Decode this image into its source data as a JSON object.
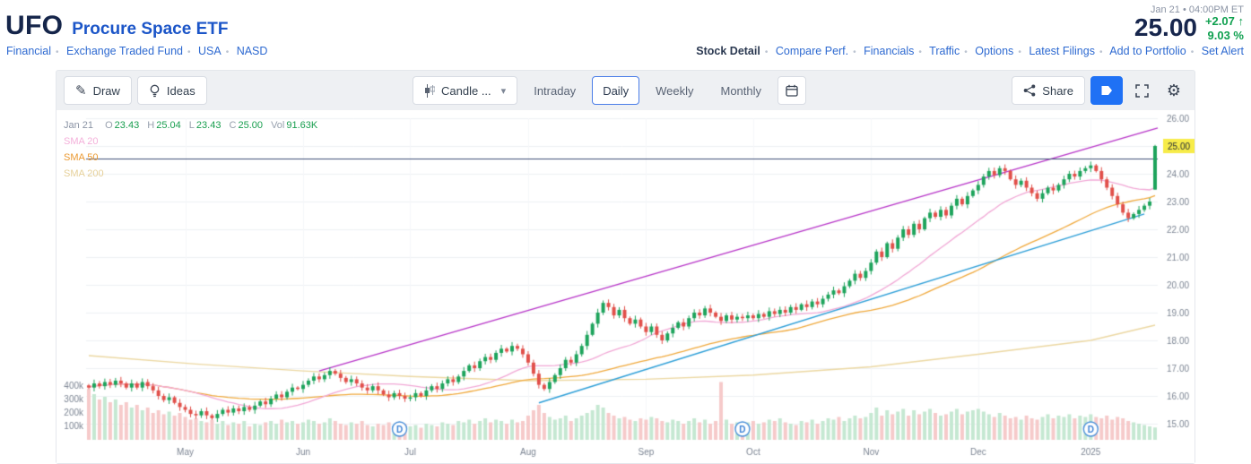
{
  "header": {
    "symbol": "UFO",
    "name": "Procure Space ETF",
    "breadcrumb": [
      "Financial",
      "Exchange Traded Fund",
      "USA",
      "NASD"
    ],
    "timestamp": "Jan 21 • 04:00PM ET",
    "price": "25.00",
    "change": "+2.07",
    "change_arrow": "↑",
    "change_pct": "9.03 %",
    "nav": [
      {
        "label": "Stock Detail"
      },
      {
        "label": "Compare Perf."
      },
      {
        "label": "Financials"
      },
      {
        "label": "Traffic"
      },
      {
        "label": "Options"
      },
      {
        "label": "Latest Filings"
      },
      {
        "label": "Add to Portfolio"
      },
      {
        "label": "Set Alert"
      }
    ]
  },
  "toolbar": {
    "draw_label": "Draw",
    "ideas_label": "Ideas",
    "chart_type_dropdown": "Candle ...",
    "tabs": [
      {
        "label": "Intraday"
      },
      {
        "label": "Daily"
      },
      {
        "label": "Weekly"
      },
      {
        "label": "Monthly"
      }
    ],
    "share_label": "Share"
  },
  "legend": {
    "date": "Jan 21",
    "o_label": "O",
    "o": "23.43",
    "h_label": "H",
    "h": "25.04",
    "l_label": "L",
    "l": "23.43",
    "c_label": "C",
    "c": "25.00",
    "vol_label": "Vol",
    "vol": "91.63K",
    "sma20_label": "SMA 20",
    "sma50_label": "SMA 50",
    "sma200_label": "SMA 200"
  },
  "chart_data": {
    "type": "candlestick",
    "title": "UFO Procure Space ETF — Daily",
    "x_axis_labels": [
      "May",
      "Jun",
      "Jul",
      "Aug",
      "Sep",
      "Oct",
      "Nov",
      "Dec",
      "2025"
    ],
    "month_start_index": [
      18,
      40,
      60,
      82,
      104,
      124,
      146,
      166,
      187
    ],
    "y_max": 26,
    "y_ticks": [
      26,
      25,
      24,
      23,
      22,
      21,
      20,
      19,
      18,
      17,
      16,
      15
    ],
    "volume_ticks": [
      {
        "label": "400k",
        "value": 400
      },
      {
        "label": "300k",
        "value": 300
      },
      {
        "label": "200k",
        "value": 200
      },
      {
        "label": "100k",
        "value": 100
      }
    ],
    "closes": [
      16.3,
      16.45,
      16.35,
      16.5,
      16.4,
      16.55,
      16.45,
      16.3,
      16.45,
      16.3,
      16.5,
      16.35,
      16.2,
      16.0,
      15.85,
      15.95,
      15.75,
      15.6,
      15.5,
      15.35,
      15.3,
      15.45,
      15.3,
      15.2,
      15.35,
      15.5,
      15.4,
      15.55,
      15.45,
      15.6,
      15.5,
      15.65,
      15.8,
      15.7,
      15.9,
      16.05,
      15.95,
      16.15,
      16.3,
      16.25,
      16.4,
      16.55,
      16.7,
      16.6,
      16.75,
      16.9,
      16.8,
      16.65,
      16.5,
      16.6,
      16.45,
      16.3,
      16.2,
      16.35,
      16.2,
      16.05,
      15.95,
      16.1,
      16.0,
      15.9,
      15.95,
      16.1,
      16.0,
      16.2,
      16.35,
      16.25,
      16.45,
      16.6,
      16.5,
      16.7,
      16.9,
      17.1,
      17.0,
      17.25,
      17.4,
      17.3,
      17.55,
      17.7,
      17.6,
      17.8,
      17.7,
      17.5,
      17.2,
      16.8,
      16.4,
      16.25,
      16.5,
      16.75,
      17.0,
      17.3,
      17.2,
      17.5,
      17.8,
      18.2,
      18.6,
      19.0,
      19.35,
      19.2,
      18.9,
      19.1,
      18.8,
      18.6,
      18.75,
      18.5,
      18.3,
      18.5,
      18.2,
      18.0,
      18.25,
      18.45,
      18.65,
      18.5,
      18.8,
      19.0,
      18.9,
      19.15,
      19.0,
      18.85,
      18.7,
      18.9,
      18.75,
      18.85,
      18.8,
      18.9,
      18.8,
      18.95,
      18.85,
      19.05,
      18.95,
      19.1,
      19.0,
      19.2,
      19.1,
      19.3,
      19.2,
      19.4,
      19.3,
      19.5,
      19.65,
      19.8,
      19.7,
      19.95,
      20.15,
      20.4,
      20.25,
      20.5,
      20.8,
      21.2,
      21.0,
      21.5,
      21.3,
      21.7,
      22.0,
      21.8,
      22.2,
      22.0,
      22.4,
      22.6,
      22.45,
      22.7,
      22.5,
      22.85,
      23.1,
      22.9,
      23.2,
      23.4,
      23.6,
      23.9,
      24.1,
      23.95,
      24.2,
      24.1,
      23.8,
      23.6,
      23.75,
      23.5,
      23.3,
      23.1,
      23.3,
      23.5,
      23.4,
      23.6,
      23.8,
      24.0,
      23.9,
      24.1,
      24.2,
      24.3,
      24.1,
      23.8,
      23.5,
      23.2,
      22.9,
      22.6,
      22.4,
      22.55,
      22.7,
      22.85,
      23.0,
      25.0
    ],
    "volumes_k": [
      380,
      340,
      300,
      320,
      280,
      300,
      260,
      280,
      240,
      260,
      220,
      240,
      200,
      220,
      190,
      210,
      180,
      200,
      170,
      150,
      160,
      140,
      130,
      150,
      120,
      140,
      110,
      130,
      120,
      140,
      100,
      120,
      110,
      130,
      140,
      120,
      150,
      130,
      140,
      120,
      130,
      150,
      140,
      120,
      130,
      160,
      140,
      120,
      110,
      130,
      120,
      140,
      110,
      100,
      120,
      110,
      130,
      100,
      110,
      120,
      100,
      110,
      90,
      120,
      110,
      100,
      130,
      120,
      110,
      140,
      130,
      150,
      120,
      140,
      160,
      130,
      150,
      140,
      120,
      150,
      130,
      140,
      180,
      220,
      260,
      200,
      170,
      150,
      160,
      180,
      140,
      160,
      180,
      200,
      220,
      260,
      240,
      200,
      180,
      160,
      170,
      150,
      140,
      160,
      150,
      170,
      160,
      140,
      130,
      150,
      140,
      120,
      140,
      160,
      130,
      150,
      120,
      140,
      430,
      150,
      120,
      130,
      120,
      130,
      140,
      120,
      130,
      150,
      140,
      160,
      130,
      120,
      110,
      140,
      130,
      150,
      120,
      140,
      160,
      150,
      170,
      140,
      160,
      180,
      160,
      170,
      200,
      240,
      180,
      220,
      190,
      210,
      230,
      180,
      220,
      190,
      210,
      230,
      200,
      180,
      190,
      210,
      230,
      190,
      210,
      220,
      230,
      210,
      190,
      170,
      200,
      180,
      160,
      170,
      150,
      180,
      160,
      150,
      170,
      190,
      160,
      180,
      170,
      190,
      160,
      180,
      170,
      190,
      170,
      160,
      180,
      150,
      170,
      160,
      140,
      130,
      120,
      110,
      100,
      91.63
    ],
    "last_candle": {
      "open": 23.43,
      "high": 25.04,
      "low": 23.43,
      "close": 25.0,
      "volume_k": 91.63
    },
    "last_price_label": "25.00",
    "sma200_points": [
      [
        0,
        17.45
      ],
      [
        20,
        17.15
      ],
      [
        40,
        16.9
      ],
      [
        60,
        16.7
      ],
      [
        82,
        16.55
      ],
      [
        104,
        16.6
      ],
      [
        124,
        16.75
      ],
      [
        146,
        17.05
      ],
      [
        166,
        17.5
      ],
      [
        187,
        18.0
      ],
      [
        199,
        18.55
      ]
    ],
    "drawings": {
      "trend_line": {
        "from": [
          43,
          16.9
        ],
        "to": [
          200,
          25.65
        ],
        "color": "#b836c9"
      },
      "support_line": {
        "from": [
          84,
          15.75
        ],
        "to": [
          197,
          22.55
        ],
        "color": "#2d9fd8"
      },
      "horizontal_line": {
        "price": 24.55,
        "color": "#3f4f78"
      }
    },
    "dividend_markers": {
      "label": "D",
      "days": [
        58,
        122,
        187
      ]
    }
  },
  "colors": {
    "up": "#1ea45c",
    "down": "#e1504a",
    "vol_up": "#c5e8d2",
    "vol_down": "#f6caca",
    "sma20": "#f2a8d6",
    "sma50": "#f0a93c",
    "sma200": "#ecd8a2",
    "grid": "#eef1f4",
    "axis_text": "#7d8694",
    "badge_bg": "#f7ec49",
    "accent_blue": "#1f71f5",
    "green": "#0fa04f"
  }
}
